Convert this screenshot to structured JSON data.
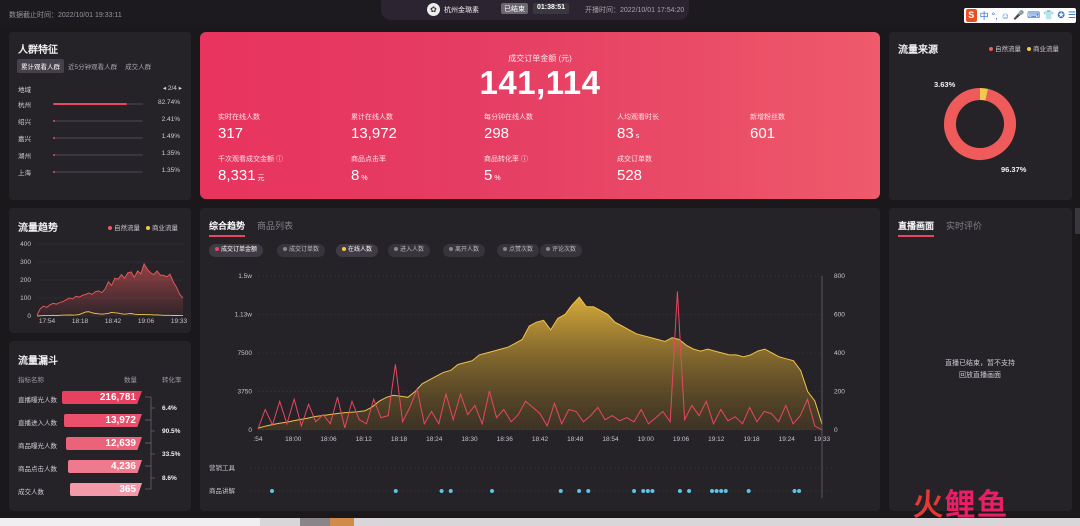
{
  "header": {
    "data_time": "数据截止时间：2022/10/01 19:33:11",
    "shop_avatar": "✿",
    "shop_name": "杭州金璐素",
    "live_status": "已结束",
    "live_duration": "01:38:51",
    "start_time": "开播时间：2022/10/01 17:54:20"
  },
  "ime": {
    "logo": "S",
    "items": [
      "中",
      "°,",
      "☺",
      "🎤",
      "⌨",
      "👕",
      "✪",
      "☰"
    ]
  },
  "audience": {
    "title": "人群特征",
    "tabs": [
      "累计观看人群",
      "近5分钟观看人群",
      "成交人群"
    ],
    "active_tab": 0,
    "region_label": "地域",
    "pager": "◂ 2/4 ▸",
    "rows": [
      {
        "name": "杭州",
        "pct": "82.74%",
        "value": 82.74
      },
      {
        "name": "绍兴",
        "pct": "2.41%",
        "value": 2.41
      },
      {
        "name": "嘉兴",
        "pct": "1.49%",
        "value": 1.49
      },
      {
        "name": "湖州",
        "pct": "1.35%",
        "value": 1.35
      },
      {
        "name": "上海",
        "pct": "1.35%",
        "value": 1.35
      }
    ]
  },
  "hero": {
    "label": "成交订单金额 (元)",
    "value": "141,114",
    "metrics": [
      {
        "label": "实时在线人数",
        "value": "317",
        "unit": ""
      },
      {
        "label": "累计在线人数",
        "value": "13,972",
        "unit": ""
      },
      {
        "label": "每分钟在线人数",
        "value": "298",
        "unit": ""
      },
      {
        "label": "人均观看时长",
        "value": "83",
        "unit": "s"
      },
      {
        "label": "新增粉丝数",
        "value": "601",
        "unit": ""
      },
      {
        "label": "千次观看成交金额 ⓘ",
        "value": "8,331",
        "unit": "元"
      },
      {
        "label": "商品点击率",
        "value": "8",
        "unit": "%"
      },
      {
        "label": "商品转化率 ⓘ",
        "value": "5",
        "unit": "%"
      },
      {
        "label": "成交订单数",
        "value": "528",
        "unit": ""
      }
    ]
  },
  "traffic_source": {
    "title": "流量来源",
    "legend": [
      "自然流量",
      "商业流量"
    ],
    "natural_pct": "96.37%",
    "paid_pct": "3.63%",
    "natural": 96.37,
    "paid": 3.63
  },
  "traffic_trend": {
    "title": "流量趋势",
    "legend": [
      "自然流量",
      "商业流量"
    ]
  },
  "funnel": {
    "title": "流量漏斗",
    "col_name": "指标名称",
    "col_count": "数量",
    "col_conv": "转化率",
    "rows": [
      {
        "name": "直播曝光人数",
        "value": "216,781"
      },
      {
        "name": "直播进入人数",
        "value": "13,972"
      },
      {
        "name": "商品曝光人数",
        "value": "12,639"
      },
      {
        "name": "商品点击人数",
        "value": "4,236"
      },
      {
        "name": "成交人数",
        "value": "365"
      }
    ],
    "conversions": [
      "6.4%",
      "90.5%",
      "33.5%",
      "8.6%"
    ]
  },
  "main_chart": {
    "tabs": [
      "综合趋势",
      "商品列表"
    ],
    "chips": [
      "成交订单金额",
      "成交订单数",
      "在线人数",
      "进入人数",
      "离开人数",
      "点赞次数",
      "评论次数"
    ],
    "row_labels": [
      "营销工具",
      "商品讲解"
    ]
  },
  "live_panel": {
    "tabs": [
      "直播画面",
      "实时评价"
    ],
    "message_line1": "直播已结束，暂不支持",
    "message_line2": "回放直播画面"
  },
  "watermark": {
    "text1": "火",
    "text2": "鲤鱼"
  },
  "colors": {
    "accent": "#e8475f",
    "natural": "#ef5b5b",
    "paid": "#f2c94c",
    "bg": "#1b181c",
    "card": "#252228"
  },
  "chart_data": [
    {
      "type": "area",
      "title": "流量趋势",
      "x_labels": [
        "17:54",
        "18:18",
        "18:42",
        "19:06",
        "19:33"
      ],
      "y_ticks": [
        "400",
        "300",
        "200",
        "100",
        "0"
      ],
      "ylim": [
        0,
        400
      ],
      "series": [
        {
          "name": "自然流量",
          "values": [
            5,
            40,
            55,
            48,
            62,
            70,
            66,
            75,
            80,
            90,
            100,
            95,
            110,
            105,
            115,
            120,
            128,
            120,
            135,
            140,
            130,
            150,
            190,
            170,
            210,
            205,
            230,
            210,
            240,
            245,
            215,
            250,
            235,
            290,
            260,
            240,
            230,
            250,
            228,
            226,
            218,
            232,
            190,
            160,
            120,
            100
          ]
        },
        {
          "name": "商业流量",
          "values": [
            0,
            1,
            2,
            2,
            3,
            4,
            3,
            4,
            5,
            5,
            6,
            5,
            6,
            8,
            15,
            22,
            24,
            18,
            14,
            12,
            10,
            12,
            15,
            20,
            18,
            16,
            12,
            10,
            12,
            14,
            10,
            9,
            8,
            8,
            7,
            7,
            6,
            6,
            5,
            4,
            4,
            4,
            3,
            3,
            2,
            2
          ]
        }
      ]
    },
    {
      "type": "pie",
      "title": "流量来源",
      "series": [
        {
          "name": "自然流量",
          "value": 96.37
        },
        {
          "name": "商业流量",
          "value": 3.63
        }
      ]
    },
    {
      "type": "bar",
      "title": "流量漏斗",
      "categories": [
        "直播曝光人数",
        "直播进入人数",
        "商品曝光人数",
        "商品点击人数",
        "成交人数"
      ],
      "values": [
        216781,
        13972,
        12639,
        4236,
        365
      ]
    },
    {
      "type": "area",
      "title": "综合趋势",
      "x_labels": [
        ":54",
        "18:00",
        "18:06",
        "18:12",
        "18:18",
        "18:24",
        "18:30",
        "18:36",
        "18:42",
        "18:48",
        "18:54",
        "19:00",
        "19:06",
        "19:12",
        "19:18",
        "19:24",
        "19:33"
      ],
      "y_left_ticks": [
        "1.5w",
        "1.13w",
        "7500",
        "3750",
        "0"
      ],
      "y_right_ticks": [
        "800",
        "600",
        "400",
        "200",
        "0"
      ],
      "ylim_left": [
        0,
        15000
      ],
      "ylim_right": [
        0,
        800
      ],
      "series": [
        {
          "name": "在线人数",
          "axis": "right",
          "values": [
            10,
            20,
            28,
            35,
            40,
            48,
            55,
            62,
            70,
            75,
            80,
            85,
            90,
            92,
            95,
            100,
            120,
            150,
            170,
            180,
            175,
            170,
            200,
            240,
            260,
            280,
            300,
            310,
            340,
            350,
            360,
            390,
            400,
            410,
            420,
            430,
            450,
            470,
            540,
            560,
            570,
            520,
            580,
            600,
            650,
            690,
            640,
            640,
            620,
            600,
            560,
            540,
            520,
            500,
            490,
            480,
            470,
            460,
            480,
            470,
            440,
            420,
            410,
            420,
            410,
            400,
            390,
            390,
            380,
            390,
            410,
            420,
            400,
            380,
            370,
            360,
            310,
            200,
            150,
            30
          ]
        },
        {
          "name": "成交订单金额",
          "axis": "left",
          "values": [
            100,
            2000,
            500,
            2800,
            600,
            3000,
            400,
            2500,
            800,
            1500,
            600,
            3200,
            200,
            2800,
            1000,
            600,
            3000,
            1200,
            1400,
            6400,
            800,
            2200,
            4000,
            600,
            1800,
            600,
            3500,
            1000,
            3500,
            1500,
            2400,
            600,
            3800,
            1200,
            2000,
            800,
            1500,
            2800,
            2200,
            1600,
            400,
            2600,
            600,
            2000,
            1800,
            800,
            1400,
            2200,
            1000,
            1400,
            900,
            1200,
            800,
            2000,
            600,
            1200,
            1800,
            800,
            13500,
            1000,
            2400,
            1400,
            2800,
            600,
            2000,
            900,
            1300,
            600,
            2200,
            800,
            1800,
            1600,
            800,
            2400,
            600,
            1400,
            3000,
            400,
            0
          ]
        }
      ],
      "tool_marks": [],
      "explain_marks": [
        0,
        27,
        37,
        39,
        48,
        63,
        67,
        69,
        79,
        81,
        82,
        83,
        89,
        91,
        96,
        97,
        98,
        99,
        104,
        114,
        115
      ]
    }
  ]
}
